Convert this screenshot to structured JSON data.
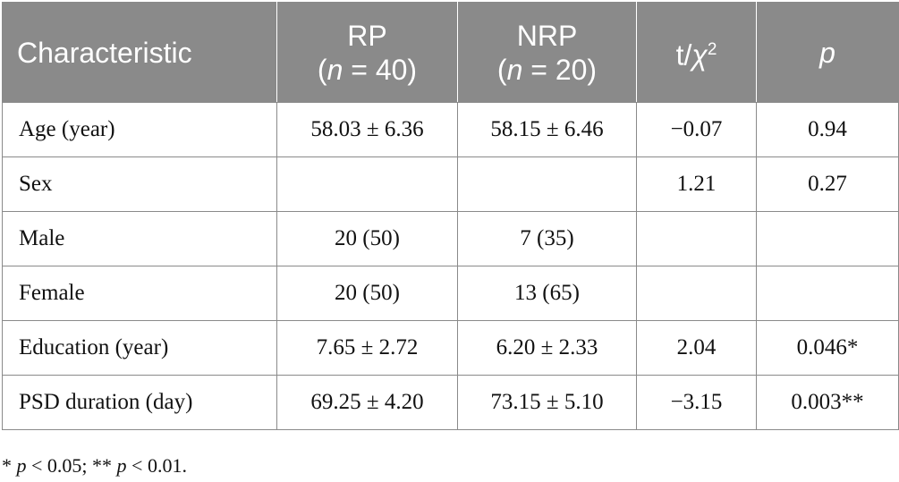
{
  "table": {
    "headers": {
      "characteristic": "Characteristic",
      "rp": {
        "name": "RP",
        "n_label": "n",
        "n_value": " = 40)"
      },
      "nrp": {
        "name": "NRP",
        "n_label": "n",
        "n_value": " = 20)"
      },
      "stat": {
        "prefix": "t/",
        "chi": "χ",
        "sup": "2"
      },
      "p": "p"
    },
    "rows": [
      {
        "label": "Age (year)",
        "rp": "58.03 ± 6.36",
        "nrp": "58.15 ± 6.46",
        "stat": "−0.07",
        "p": "0.94"
      },
      {
        "label": "Sex",
        "rp": "",
        "nrp": "",
        "stat": "1.21",
        "p": "0.27"
      },
      {
        "label": "Male",
        "rp": "20 (50)",
        "nrp": "7 (35)",
        "stat": "",
        "p": ""
      },
      {
        "label": "Female",
        "rp": "20 (50)",
        "nrp": "13 (65)",
        "stat": "",
        "p": ""
      },
      {
        "label": "Education (year)",
        "rp": "7.65 ± 2.72",
        "nrp": "6.20 ± 2.33",
        "stat": "2.04",
        "p": "0.046*"
      },
      {
        "label": "PSD duration (day)",
        "rp": "69.25 ± 4.20",
        "nrp": "73.15 ± 5.10",
        "stat": "−3.15",
        "p": "0.003**"
      }
    ]
  },
  "footnote": {
    "star1": "* ",
    "p1": "p",
    "t1": " < 0.05; ** ",
    "p2": "p",
    "t2": " < 0.01."
  }
}
